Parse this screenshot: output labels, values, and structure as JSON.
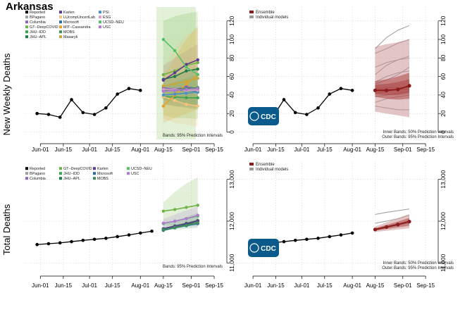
{
  "page_title": "Arkansas",
  "shared_text": {
    "cdc_logo_text": "CDC",
    "bands_single": "Bands: 95% Prediction Intervals",
    "bands_inner": "Inner Bands: 50% Prediction Intervals",
    "bands_outer": "Outer Bands: 95% Prediction Intervals"
  },
  "colors": {
    "reported": "#000000",
    "ensemble": "#8b1a1a",
    "individual": "#9a9a9a",
    "cdc_logo": "#0a5a8c"
  },
  "chart_data": [
    {
      "id": "weekly_models",
      "type": "line",
      "title": "",
      "ylabel": "New Weekly Deaths",
      "xlabel": "",
      "x_ticks": [
        "Jun-01",
        "Jun-15",
        "Jul-01",
        "Jul-15",
        "Aug-01",
        "Aug-15",
        "Sep-01",
        "Sep-15"
      ],
      "y_ticks": [
        0,
        20,
        40,
        60,
        80,
        100,
        120
      ],
      "ylim": [
        -8,
        135
      ],
      "y_axis_side": "right",
      "grid": true,
      "legend_placement": "top-left",
      "bands_label": "Bands: 95% Prediction Intervals",
      "reported": {
        "name": "Reported",
        "dates": [
          "2020-05-30",
          "2020-06-06",
          "2020-06-13",
          "2020-06-20",
          "2020-06-27",
          "2020-07-04",
          "2020-07-11",
          "2020-07-18",
          "2020-07-25",
          "2020-08-01",
          "2020-08-08"
        ],
        "values": [
          20,
          19,
          16,
          35,
          21,
          19,
          26,
          41,
          47,
          45,
          null
        ]
      },
      "forecast_dates": [
        "2020-08-15",
        "2020-08-22",
        "2020-08-29",
        "2020-09-05"
      ],
      "series": [
        {
          "name": "BPagano",
          "color": "#9aa0a6",
          "values": [
            47,
            47,
            47,
            47
          ],
          "band": null
        },
        {
          "name": "Columbia",
          "color": "#8d66b8",
          "values": [
            48,
            46,
            49,
            47
          ],
          "band": [
            [
              30,
              72
            ],
            [
              28,
              80
            ],
            [
              27,
              88
            ],
            [
              26,
              95
            ]
          ]
        },
        {
          "name": "GT−DeepCOVID",
          "color": "#6fb246",
          "values": [
            62,
            66,
            72,
            75
          ],
          "band": [
            [
              18,
              120
            ],
            [
              15,
              125
            ],
            [
              15,
              128
            ],
            [
              14,
              130
            ]
          ]
        },
        {
          "name": "JHU−IDD",
          "color": "#3da44d",
          "values": [
            38,
            38,
            37,
            37
          ],
          "band": [
            [
              30,
              50
            ],
            [
              28,
              54
            ],
            [
              26,
              58
            ],
            [
              24,
              62
            ]
          ]
        },
        {
          "name": "JHU−APL",
          "color": "#1f7a43",
          "values": [
            57,
            60,
            66,
            68
          ],
          "band": null
        },
        {
          "name": "Karlen",
          "color": "#5e3a8c",
          "values": [
            56,
            64,
            73,
            78
          ],
          "band": null
        },
        {
          "name": "LUcompUncertLab",
          "color": "#f4c27a",
          "values": [
            38,
            34,
            30,
            28
          ],
          "band": [
            [
              15,
              70
            ],
            [
              10,
              90
            ],
            [
              8,
              105
            ],
            [
              6,
              112
            ]
          ]
        },
        {
          "name": "Microsoft",
          "color": "#2c6e9c",
          "values": [
            46,
            45,
            45,
            44
          ],
          "band": null
        },
        {
          "name": "MIT−Cassandra",
          "color": "#e3a32a",
          "values": [
            28,
            40,
            52,
            62
          ],
          "band": [
            [
              10,
              60
            ],
            [
              15,
              80
            ],
            [
              20,
              100
            ],
            [
              25,
              115
            ]
          ]
        },
        {
          "name": "MOBS",
          "color": "#3f8f5a",
          "values": [
            45,
            46,
            47,
            48
          ],
          "band": [
            [
              35,
              58
            ],
            [
              33,
              62
            ],
            [
              31,
              66
            ],
            [
              29,
              70
            ]
          ]
        },
        {
          "name": "Masaryk",
          "color": "#c8a83a",
          "values": [
            50,
            52,
            55,
            58
          ],
          "band": null
        },
        {
          "name": "PSI",
          "color": "#4a8fc7",
          "values": [
            40,
            41,
            42,
            43
          ],
          "band": null
        },
        {
          "name": "ESG",
          "color": "#d9a3c6",
          "values": [
            46,
            46,
            45,
            45
          ],
          "band": null
        },
        {
          "name": "UCSD−NEU",
          "color": "#55bf6a",
          "values": [
            100,
            88,
            70,
            62
          ],
          "band": null
        },
        {
          "name": "USC",
          "color": "#b07ad0",
          "values": [
            44,
            45,
            46,
            47
          ],
          "band": null
        }
      ]
    },
    {
      "id": "weekly_ensemble",
      "type": "line",
      "title": "",
      "ylabel": "",
      "xlabel": "",
      "x_ticks": [
        "Jun-01",
        "Jun-15",
        "Jul-01",
        "Jul-15",
        "Aug-01",
        "Aug-15",
        "Sep-01",
        "Sep-15"
      ],
      "y_ticks": [
        0,
        20,
        40,
        60,
        80,
        100,
        120
      ],
      "ylim": [
        -8,
        135
      ],
      "y_axis_side": "right",
      "grid": true,
      "legend_placement": "top-left",
      "legend": [
        "Ensemble",
        "Individual models"
      ],
      "bands_label_inner": "Inner Bands: 50% Prediction Intervals",
      "bands_label_outer": "Outer Bands: 95% Prediction Intervals",
      "reported": {
        "dates": [
          "2020-05-30",
          "2020-06-06",
          "2020-06-13",
          "2020-06-20",
          "2020-06-27",
          "2020-07-04",
          "2020-07-11",
          "2020-07-18",
          "2020-07-25",
          "2020-08-01"
        ],
        "values": [
          20,
          19,
          16,
          35,
          21,
          19,
          26,
          41,
          47,
          45
        ]
      },
      "forecast_dates": [
        "2020-08-15",
        "2020-08-22",
        "2020-08-29",
        "2020-09-05"
      ],
      "ensemble": {
        "name": "Ensemble",
        "values": [
          45,
          45,
          46,
          50
        ],
        "inner_bands": [
          [
            [
              38,
              55
            ],
            [
              36,
              57
            ],
            [
              35,
              60
            ],
            [
              36,
              64
            ]
          ],
          [
            [
              41,
              51
            ],
            [
              40,
              52
            ],
            [
              40,
              54
            ],
            [
              42,
              57
            ]
          ]
        ],
        "outer_bands": [
          [
            22,
            92
          ],
          [
            20,
            95
          ],
          [
            18,
            97
          ],
          [
            16,
            100
          ]
        ]
      },
      "individual_models": [
        [
          90,
          102,
          110,
          115
        ],
        [
          85,
          90,
          96,
          100
        ],
        [
          70,
          75,
          78,
          80
        ],
        [
          62,
          72,
          78,
          82
        ],
        [
          54,
          60,
          64,
          66
        ],
        [
          52,
          56,
          62,
          70
        ],
        [
          47,
          48,
          48,
          48
        ],
        [
          46,
          46,
          46,
          46
        ],
        [
          42,
          44,
          46,
          47
        ],
        [
          38,
          40,
          42,
          44
        ],
        [
          32,
          36,
          38,
          40
        ],
        [
          28,
          26,
          24,
          24
        ]
      ]
    },
    {
      "id": "cumulative_models",
      "type": "line",
      "title": "",
      "ylabel": "Total Deaths",
      "xlabel": "",
      "x_ticks": [
        "Jun-01",
        "Jun-15",
        "Jul-01",
        "Jul-15",
        "Aug-01",
        "Aug-15",
        "Sep-01",
        "Sep-15"
      ],
      "y_ticks": [
        11000,
        12000,
        13000
      ],
      "ylim": [
        10820,
        13450
      ],
      "y_axis_side": "right",
      "grid": true,
      "legend_placement": "top-left",
      "bands_label": "Bands: 95% Prediction Intervals",
      "reported": {
        "name": "Reported",
        "dates": [
          "2020-05-30",
          "2020-06-06",
          "2020-06-13",
          "2020-06-20",
          "2020-06-27",
          "2020-07-04",
          "2020-07-11",
          "2020-07-18",
          "2020-07-25",
          "2020-08-01",
          "2020-08-08"
        ],
        "values": [
          11440,
          11460,
          11480,
          11510,
          11540,
          11565,
          11590,
          11630,
          11670,
          11715,
          11760
        ]
      },
      "forecast_dates": [
        "2020-08-15",
        "2020-08-22",
        "2020-08-29",
        "2020-09-05"
      ],
      "series": [
        {
          "name": "BPagano",
          "color": "#9aa0a6",
          "values": [
            11800,
            11850,
            11900,
            11950
          ],
          "band": null
        },
        {
          "name": "Columbia",
          "color": "#8d66b8",
          "values": [
            11810,
            11860,
            11910,
            11960
          ],
          "band": null
        },
        {
          "name": "GT−DeepCOVID",
          "color": "#6fb246",
          "values": [
            12240,
            12280,
            12330,
            12380
          ],
          "band": [
            [
              11900,
              12450
            ],
            [
              11900,
              12700
            ],
            [
              11900,
              12900
            ],
            [
              11900,
              13050
            ]
          ]
        },
        {
          "name": "JHU−IDD",
          "color": "#3da44d",
          "values": [
            11820,
            11890,
            11950,
            12020
          ],
          "band": [
            [
              11780,
              11900
            ],
            [
              11800,
              12000
            ],
            [
              11820,
              12100
            ],
            [
              11840,
              12200
            ]
          ]
        },
        {
          "name": "JHU−APL",
          "color": "#1f7a43",
          "values": [
            11780,
            11840,
            11920,
            12000
          ],
          "band": null
        },
        {
          "name": "Karlen",
          "color": "#5e3a8c",
          "values": [
            11820,
            11880,
            11940,
            12010
          ],
          "band": null
        },
        {
          "name": "Microsoft",
          "color": "#2c6e9c",
          "values": [
            11790,
            11840,
            11890,
            11940
          ],
          "band": null
        },
        {
          "name": "MOBS",
          "color": "#3f8f5a",
          "values": [
            11800,
            11850,
            11900,
            11960
          ],
          "band": null
        },
        {
          "name": "UCSD−NEU",
          "color": "#55bf6a",
          "values": [
            11940,
            12000,
            12060,
            12120
          ],
          "band": null
        },
        {
          "name": "USC",
          "color": "#b07ad0",
          "values": [
            11950,
            12000,
            12060,
            12140
          ],
          "band": [
            [
              11850,
              12050
            ],
            [
              11860,
              12160
            ],
            [
              11870,
              12260
            ],
            [
              11880,
              12350
            ]
          ]
        }
      ]
    },
    {
      "id": "cumulative_ensemble",
      "type": "line",
      "title": "",
      "ylabel": "",
      "xlabel": "",
      "x_ticks": [
        "Jun-01",
        "Jun-15",
        "Jul-01",
        "Jul-15",
        "Aug-01",
        "Aug-15",
        "Sep-01",
        "Sep-15"
      ],
      "y_ticks": [
        11000,
        12000,
        13000
      ],
      "ylim": [
        10820,
        13450
      ],
      "y_axis_side": "right",
      "grid": true,
      "legend_placement": "top-left",
      "legend": [
        "Ensemble",
        "Individual models"
      ],
      "bands_label_inner": "Inner Bands: 50% Prediction Intervals",
      "bands_label_outer": "Outer Bands: 95% Prediction Intervals",
      "reported": {
        "dates": [
          "2020-05-30",
          "2020-06-06",
          "2020-06-13",
          "2020-06-20",
          "2020-06-27",
          "2020-07-04",
          "2020-07-11",
          "2020-07-18",
          "2020-07-25",
          "2020-08-01"
        ],
        "values": [
          11440,
          11460,
          11480,
          11510,
          11540,
          11565,
          11590,
          11630,
          11670,
          11715
        ]
      },
      "forecast_dates": [
        "2020-08-15",
        "2020-08-22",
        "2020-08-29",
        "2020-09-05"
      ],
      "ensemble": {
        "name": "Ensemble",
        "values": [
          11800,
          11860,
          11920,
          11990
        ],
        "inner_bands": [
          [
            [
              11770,
              11830
            ],
            [
              11810,
              11910
            ],
            [
              11850,
              11990
            ],
            [
              11890,
              12080
            ]
          ]
        ],
        "outer_bands": [
          [
            11740,
            11870
          ],
          [
            11770,
            11970
          ],
          [
            11800,
            12070
          ],
          [
            11830,
            12170
          ]
        ]
      },
      "individual_models": [
        [
          12160,
          12210,
          12250,
          12290
        ],
        [
          11950,
          12000,
          12060,
          12140
        ],
        [
          11820,
          11880,
          11940,
          12010
        ],
        [
          11780,
          11840,
          11900,
          11960
        ]
      ]
    }
  ]
}
